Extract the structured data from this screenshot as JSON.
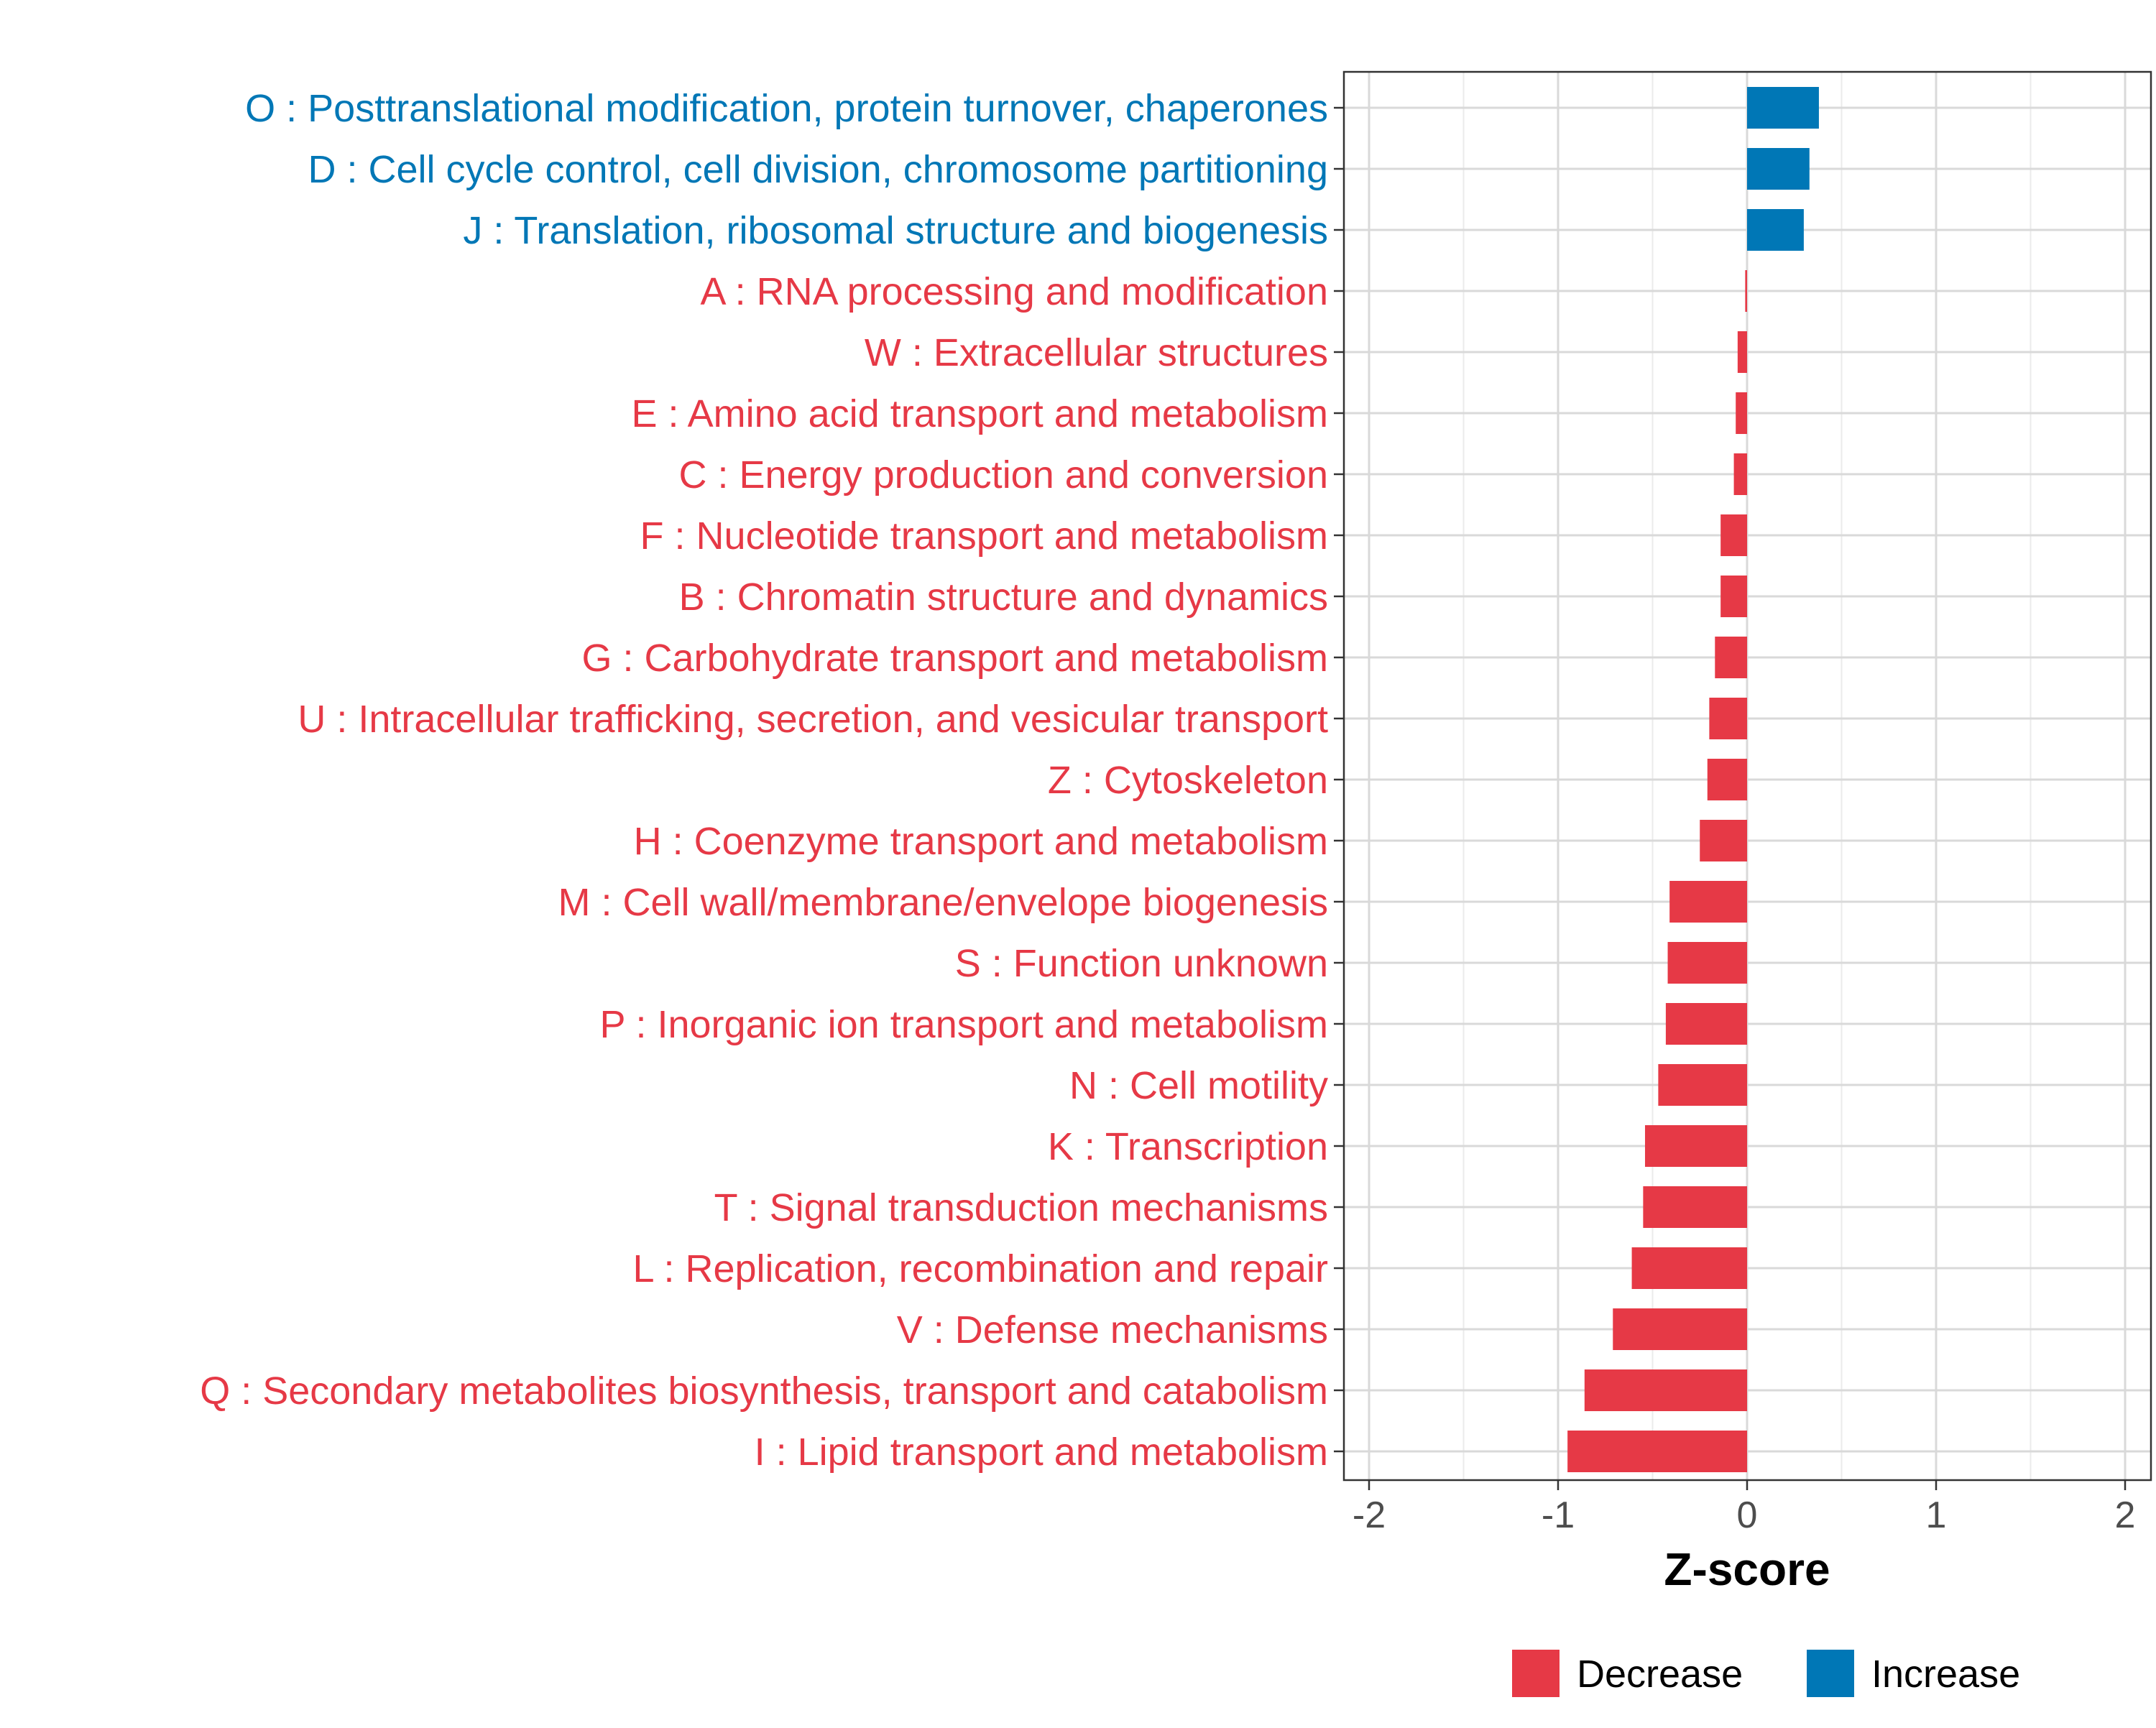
{
  "chart_data": {
    "type": "bar",
    "orientation": "horizontal",
    "xlabel": "Z-score",
    "xlim": [
      -2.1,
      2.1
    ],
    "xticks": [
      -2,
      -1,
      0,
      1,
      2
    ],
    "xtick_labels": [
      "-2",
      "-1",
      "0",
      "1",
      "2"
    ],
    "grid": true,
    "legend_position": "bottom",
    "colors": {
      "Decrease": "#E63946",
      "Increase": "#0077B6"
    },
    "legend": [
      {
        "label": "Decrease",
        "color": "#E63946"
      },
      {
        "label": "Increase",
        "color": "#0077B6"
      }
    ],
    "categories": [
      "O : Posttranslational modification, protein turnover, chaperones",
      "D : Cell cycle control, cell division, chromosome partitioning",
      "J : Translation, ribosomal structure and biogenesis",
      "A : RNA processing and modification",
      "W : Extracellular structures",
      "E : Amino acid transport and metabolism",
      "C : Energy production and conversion",
      "F : Nucleotide transport and metabolism",
      "B : Chromatin structure and dynamics",
      "G : Carbohydrate transport and metabolism",
      "U : Intracellular trafficking, secretion, and vesicular transport",
      "Z : Cytoskeleton",
      "H : Coenzyme transport and metabolism",
      "M : Cell wall/membrane/envelope biogenesis",
      "S : Function unknown",
      "P : Inorganic ion transport and metabolism",
      "N : Cell motility",
      "K : Transcription",
      "T : Signal transduction mechanisms",
      "L : Replication, recombination and repair",
      "V : Defense mechanisms",
      "Q : Secondary metabolites biosynthesis, transport and catabolism",
      "I : Lipid transport and metabolism"
    ],
    "values": [
      0.38,
      0.33,
      0.3,
      -0.01,
      -0.05,
      -0.06,
      -0.07,
      -0.14,
      -0.14,
      -0.17,
      -0.2,
      -0.21,
      -0.25,
      -0.41,
      -0.42,
      -0.43,
      -0.47,
      -0.54,
      -0.55,
      -0.61,
      -0.71,
      -0.86,
      -0.95
    ],
    "groups": [
      "Increase",
      "Increase",
      "Increase",
      "Decrease",
      "Decrease",
      "Decrease",
      "Decrease",
      "Decrease",
      "Decrease",
      "Decrease",
      "Decrease",
      "Decrease",
      "Decrease",
      "Decrease",
      "Decrease",
      "Decrease",
      "Decrease",
      "Decrease",
      "Decrease",
      "Decrease",
      "Decrease",
      "Decrease",
      "Decrease"
    ]
  }
}
